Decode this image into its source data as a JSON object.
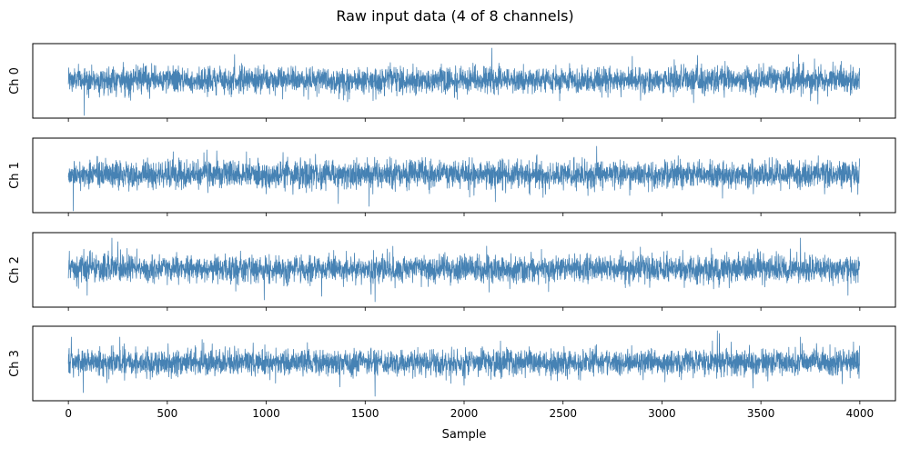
{
  "figure": {
    "title": "Raw input data (4 of 8 channels)"
  },
  "chart_data": {
    "type": "line",
    "title": "Raw input data (4 of 8 channels)",
    "xlabel": "Sample",
    "xlim": [
      -180,
      4180
    ],
    "x_ticks": [
      0,
      500,
      1000,
      1500,
      2000,
      2500,
      3000,
      3500,
      4000
    ],
    "x_tick_labels": [
      "0",
      "500",
      "1000",
      "1500",
      "2000",
      "2500",
      "3000",
      "3500",
      "4000"
    ],
    "n_samples": 4000,
    "line_color": "#4682b4",
    "grid": false,
    "y_ticks_visible": false,
    "sharex": true,
    "series": [
      {
        "ylabel": "Ch 0",
        "ylim": [
          -4.2,
          4.0
        ],
        "approx_range": [
          -3.9,
          3.5
        ],
        "noise_std": 0.95,
        "peaks": [
          {
            "x": 2140,
            "y": 3.5
          },
          {
            "x": 840,
            "y": 2.8
          },
          {
            "x": 3690,
            "y": 2.8
          },
          {
            "x": 3180,
            "y": 2.7
          },
          {
            "x": 2850,
            "y": 2.6
          },
          {
            "x": 80,
            "y": -3.9
          },
          {
            "x": 1390,
            "y": -2.2
          },
          {
            "x": 3160,
            "y": -2.5
          },
          {
            "x": 1420,
            "y": -2.1
          }
        ]
      },
      {
        "ylabel": "Ch 1",
        "ylim": [
          -4.2,
          4.0
        ],
        "approx_range": [
          -4.0,
          3.1
        ],
        "noise_std": 1.0,
        "peaks": [
          {
            "x": 2670,
            "y": 3.1
          },
          {
            "x": 700,
            "y": 2.7
          },
          {
            "x": 750,
            "y": 2.6
          },
          {
            "x": 900,
            "y": 2.5
          },
          {
            "x": 530,
            "y": 2.5
          },
          {
            "x": 25,
            "y": -4.0
          },
          {
            "x": 1520,
            "y": -3.5
          },
          {
            "x": 2050,
            "y": -2.3
          },
          {
            "x": 3990,
            "y": -2.2
          }
        ]
      },
      {
        "ylabel": "Ch 2",
        "ylim": [
          -4.2,
          4.0
        ],
        "approx_range": [
          -3.6,
          3.4
        ],
        "noise_std": 1.0,
        "peaks": [
          {
            "x": 220,
            "y": 3.4
          },
          {
            "x": 3700,
            "y": 3.4
          },
          {
            "x": 1640,
            "y": 2.5
          },
          {
            "x": 3250,
            "y": 2.3
          },
          {
            "x": 250,
            "y": 3.0
          },
          {
            "x": 1550,
            "y": -3.6
          },
          {
            "x": 990,
            "y": -3.4
          },
          {
            "x": 1280,
            "y": -3.0
          },
          {
            "x": 95,
            "y": -2.9
          },
          {
            "x": 3940,
            "y": -2.9
          },
          {
            "x": 1530,
            "y": -2.8
          }
        ]
      },
      {
        "ylabel": "Ch 3",
        "ylim": [
          -4.2,
          4.0
        ],
        "approx_range": [
          -3.7,
          3.5
        ],
        "noise_std": 0.95,
        "peaks": [
          {
            "x": 3280,
            "y": 3.5
          },
          {
            "x": 3290,
            "y": 3.2
          },
          {
            "x": 15,
            "y": 2.8
          },
          {
            "x": 260,
            "y": 2.8
          },
          {
            "x": 3700,
            "y": 2.8
          },
          {
            "x": 1550,
            "y": -3.7
          },
          {
            "x": 75,
            "y": -3.3
          },
          {
            "x": 3460,
            "y": -2.8
          },
          {
            "x": 2000,
            "y": -2.5
          }
        ]
      }
    ]
  }
}
